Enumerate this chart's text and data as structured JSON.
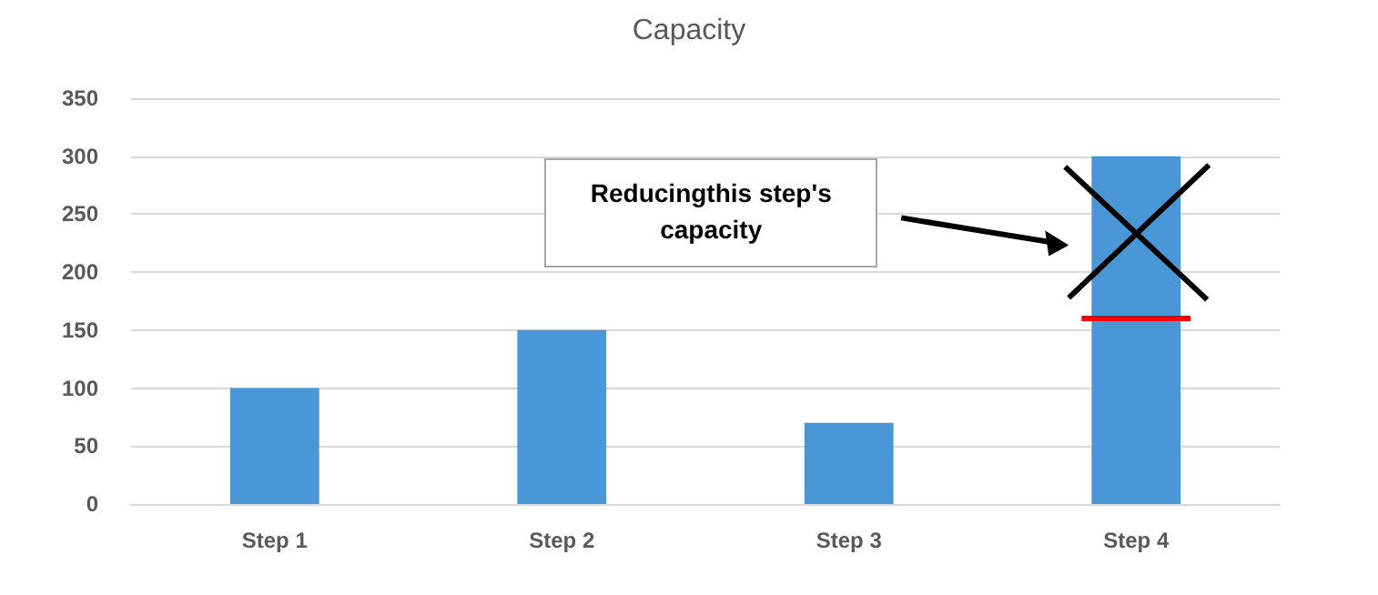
{
  "chart_data": {
    "type": "bar",
    "title": "Capacity",
    "categories": [
      "Step 1",
      "Step 2",
      "Step 3",
      "Step 4"
    ],
    "values": [
      100,
      150,
      70,
      300
    ],
    "color": "#4a97d8",
    "ylim": [
      0,
      350
    ],
    "yticks": [
      0,
      50,
      100,
      150,
      200,
      250,
      300,
      350
    ],
    "grid": "y",
    "ref_lines": [
      {
        "axis": "y",
        "value": 160,
        "color": "#ff0000"
      }
    ],
    "annotations": [
      "Reducingthis step's capacity"
    ]
  }
}
